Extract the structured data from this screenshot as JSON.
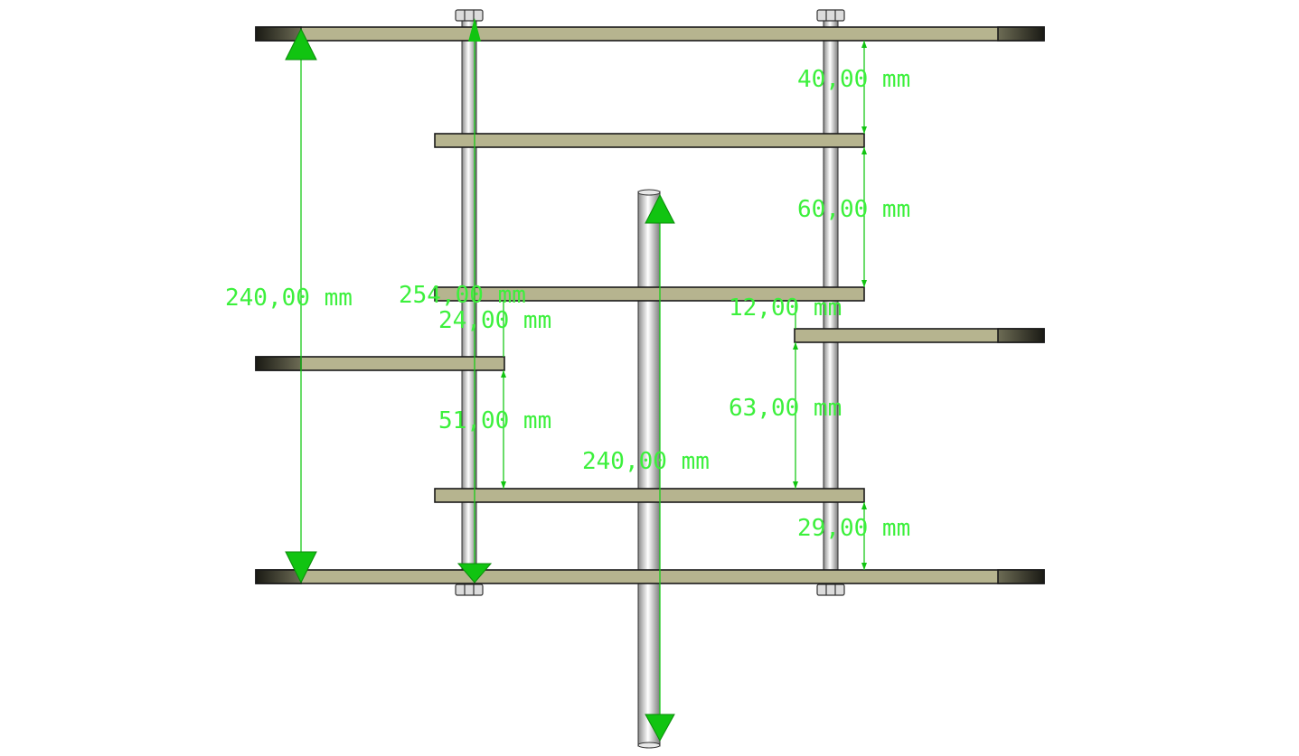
{
  "drawing": {
    "units": "mm",
    "colors": {
      "shelf": "#b6b48f",
      "shelf_end": "#2a2a24",
      "rod": "#d4d4d4",
      "dimension": "#3cf03c",
      "dimension_arrow": "#11c411"
    },
    "dimensions": {
      "overall_height": "240,00 mm",
      "left_rod": "254,00 mm",
      "offset_left_shelf": "24,00 mm",
      "left_gap_lower": "51,00 mm",
      "center_rod": "240,00 mm",
      "top_gap": "40,00 mm",
      "upper_gap": "60,00 mm",
      "right_offset": "12,00 mm",
      "right_gap": "63,00 mm",
      "bottom_gap": "29,00 mm"
    }
  }
}
